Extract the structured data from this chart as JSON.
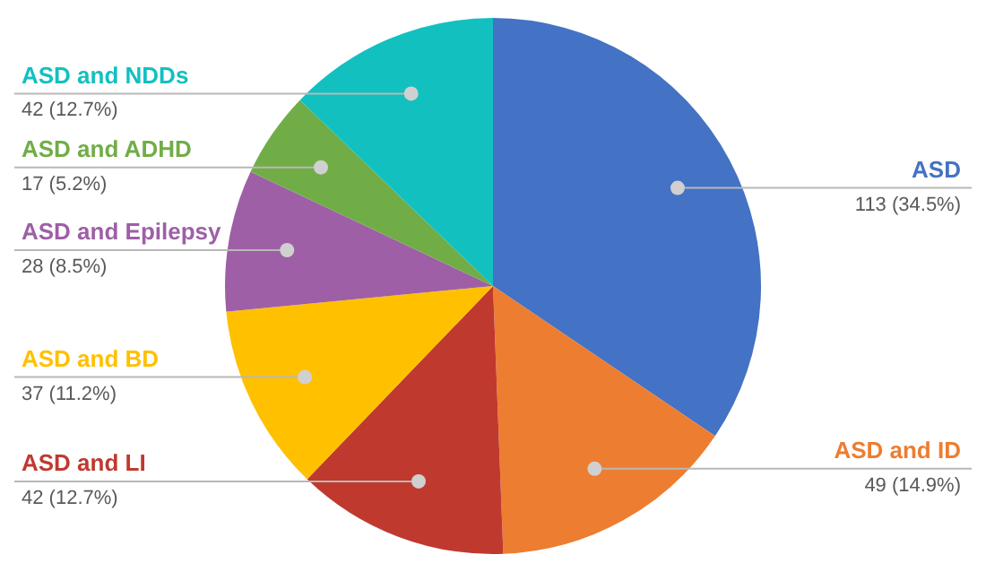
{
  "chart_data": {
    "type": "pie",
    "categories": [
      "ASD",
      "ASD and ID",
      "ASD and LI",
      "ASD and BD",
      "ASD and Epilepsy",
      "ASD and ADHD",
      "ASD and NDDs"
    ],
    "values": [
      113,
      49,
      42,
      37,
      28,
      17,
      42
    ],
    "colors": [
      "#4472c4",
      "#ed7d31",
      "#c0392f",
      "#ffc000",
      "#9e5fa6",
      "#70ad47",
      "#13c0c0"
    ],
    "value_labels": [
      "113 (34.5%)",
      "49 (14.9%)",
      "42 (12.7%)",
      "37 (11.2%)",
      "28 (8.5%)",
      "17 (5.2%)",
      "42 (12.7%)"
    ],
    "legend": false
  }
}
